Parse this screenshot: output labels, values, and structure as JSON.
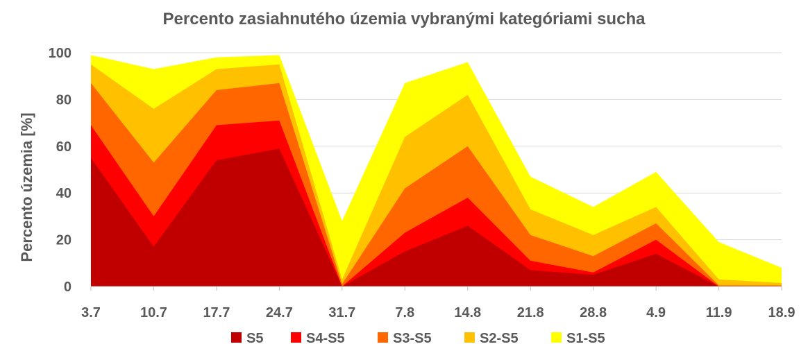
{
  "chart_data": {
    "type": "area",
    "title": "Percento zasiahnutého územia vybranými kategóriami sucha",
    "xlabel": "",
    "ylabel": "Percento územia  [%]",
    "ylim": [
      0,
      100
    ],
    "yticks": [
      "0",
      "20",
      "40",
      "60",
      "80",
      "100"
    ],
    "categories": [
      "3.7",
      "10.7",
      "17.7",
      "24.7",
      "31.7",
      "7.8",
      "14.8",
      "21.8",
      "28.8",
      "4.9",
      "11.9",
      "18.9"
    ],
    "grid": true,
    "legend_position": "bottom",
    "series": [
      {
        "name": "S5",
        "color": "#C00000",
        "values": [
          55,
          17,
          54,
          59,
          0,
          15,
          26,
          7,
          5,
          14,
          0,
          0
        ]
      },
      {
        "name": "S4-S5",
        "color": "#FF0000",
        "values": [
          69,
          30,
          69,
          71,
          0,
          23,
          38,
          11,
          6,
          20,
          0,
          0
        ]
      },
      {
        "name": "S3-S5",
        "color": "#FF6600",
        "values": [
          87,
          53,
          84,
          87,
          1,
          42,
          60,
          22,
          13,
          27,
          0.5,
          0.5
        ]
      },
      {
        "name": "S2-S5",
        "color": "#FFC000",
        "values": [
          95,
          76,
          93,
          95,
          3,
          64,
          82,
          33,
          22,
          34,
          3,
          1.5
        ]
      },
      {
        "name": "S1-S5",
        "color": "#FFFF00",
        "values": [
          99,
          93,
          98,
          99,
          28,
          87,
          96,
          47,
          34,
          49,
          19,
          8
        ]
      }
    ]
  }
}
